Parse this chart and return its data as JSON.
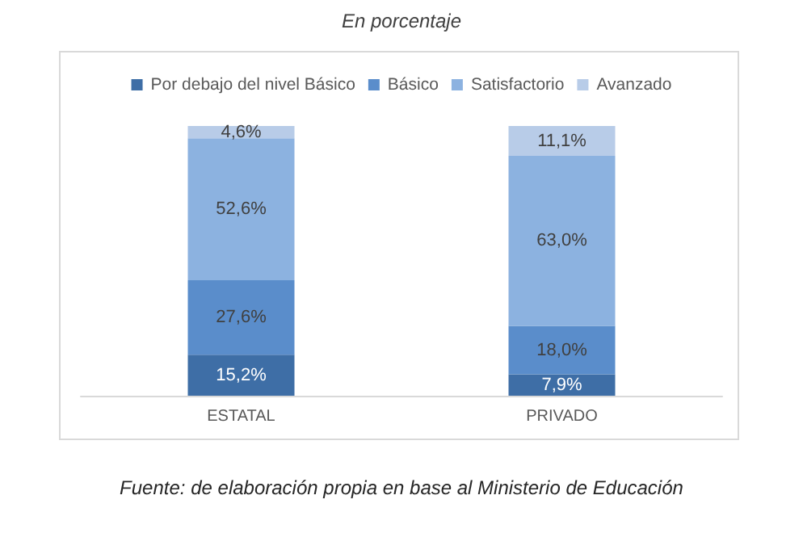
{
  "chart_data": {
    "type": "bar",
    "title": "En porcentaje",
    "stacked": true,
    "categories": [
      "ESTATAL",
      "PRIVADO"
    ],
    "series": [
      {
        "name": "Por debajo del nivel Básico",
        "color": "#3e6ea6",
        "values": [
          15.2,
          7.9
        ],
        "value_labels": [
          "15,2%",
          "7,9%"
        ]
      },
      {
        "name": "Básico",
        "color": "#5a8dcb",
        "values": [
          27.6,
          18.0
        ],
        "value_labels": [
          "27,6%",
          "18,0%"
        ]
      },
      {
        "name": "Satisfactorio",
        "color": "#8cb2e0",
        "values": [
          52.6,
          63.0
        ],
        "value_labels": [
          "52,6%",
          "63,0%"
        ]
      },
      {
        "name": "Avanzado",
        "color": "#b8cce8",
        "values": [
          4.6,
          11.1
        ],
        "value_labels": [
          "4,6%",
          "11,1%"
        ]
      }
    ],
    "legend": "top",
    "annotations": [
      "Fuente: de elaboración propia en base al Ministerio de Educación"
    ]
  }
}
